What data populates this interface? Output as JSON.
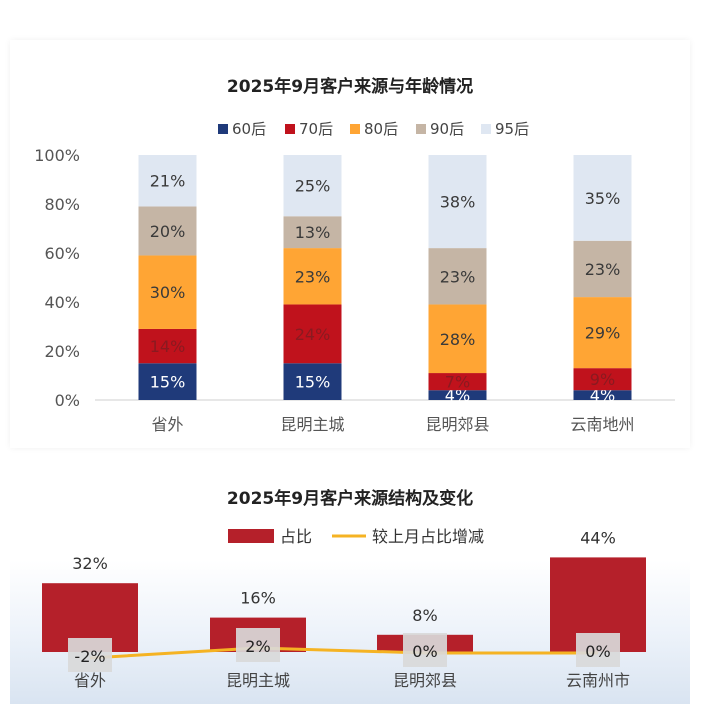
{
  "charts": [
    {
      "type": "bar",
      "stacked": true,
      "title": "2025年9月客户来源与年龄情况",
      "categories": [
        "省外",
        "昆明主城",
        "昆明郊县",
        "云南地州"
      ],
      "series": [
        {
          "name": "60后",
          "color": "#1f3a7a",
          "label_color": "#ffffff",
          "values": [
            15,
            15,
            4,
            4
          ]
        },
        {
          "name": "70后",
          "color": "#c0121c",
          "label_color": "#8a1a20",
          "values": [
            14,
            24,
            7,
            9
          ]
        },
        {
          "name": "80后",
          "color": "#ffa534",
          "label_color": "#3a3a3a",
          "values": [
            30,
            23,
            28,
            29
          ]
        },
        {
          "name": "90后",
          "color": "#c5b5a5",
          "label_color": "#3a3a3a",
          "values": [
            20,
            13,
            23,
            23
          ]
        },
        {
          "name": "95后",
          "color": "#dfe7f2",
          "label_color": "#3a3a3a",
          "values": [
            21,
            25,
            38,
            35
          ]
        }
      ],
      "value_suffix": "%",
      "yticks": [
        "0%",
        "20%",
        "40%",
        "60%",
        "80%",
        "100%"
      ],
      "ylim": [
        0,
        100
      ],
      "legend": "top",
      "grid": false
    },
    {
      "type": "bar+line",
      "title": "2025年9月客户来源结构及变化",
      "categories": [
        "省外",
        "昆明主城",
        "昆明郊县",
        "云南州市"
      ],
      "series": [
        {
          "name": "占比",
          "type": "bar",
          "color": "#b5202a",
          "values": [
            32,
            16,
            8,
            44
          ]
        },
        {
          "name": "较上月占比增减",
          "type": "line",
          "color": "#f5b323",
          "values": [
            -2,
            2,
            0,
            0
          ]
        }
      ],
      "value_suffix": "%",
      "legend": "top",
      "grid": false
    }
  ],
  "chart_data": [
    {
      "type": "bar",
      "title": "2025年9月客户来源与年龄情况",
      "categories": [
        "省外",
        "昆明主城",
        "昆明郊县",
        "云南地州"
      ],
      "series": [
        {
          "name": "60后",
          "values": [
            15,
            15,
            4,
            4
          ]
        },
        {
          "name": "70后",
          "values": [
            14,
            24,
            7,
            9
          ]
        },
        {
          "name": "80后",
          "values": [
            30,
            23,
            28,
            29
          ]
        },
        {
          "name": "90后",
          "values": [
            20,
            13,
            23,
            23
          ]
        },
        {
          "name": "95后",
          "values": [
            21,
            25,
            38,
            35
          ]
        }
      ],
      "ylim": [
        0,
        100
      ]
    },
    {
      "type": "bar",
      "title": "2025年9月客户来源结构及变化",
      "categories": [
        "省外",
        "昆明主城",
        "昆明郊县",
        "云南州市"
      ],
      "series": [
        {
          "name": "占比",
          "values": [
            32,
            16,
            8,
            44
          ]
        },
        {
          "name": "较上月占比增减",
          "values": [
            -2,
            2,
            0,
            0
          ]
        }
      ]
    }
  ]
}
